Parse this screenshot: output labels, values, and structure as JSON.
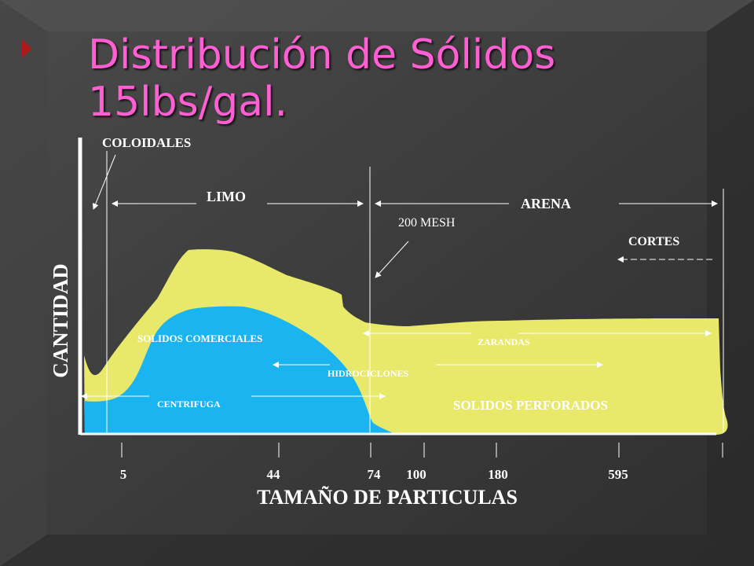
{
  "slide": {
    "title_line1": "Distribución de Sólidos",
    "title_line2": "15lbs/gal.",
    "colors": {
      "background": "#3a3a3a",
      "title": "#ff5fd2",
      "yellow_area": "#e8e86a",
      "blue_area": "#1ab4f0",
      "lines": "#ffffff"
    }
  },
  "diagram": {
    "y_axis_label": "CANTIDAD",
    "x_axis_label": "TAMAÑO DE PARTICULAS",
    "ticks": [
      "5",
      "44",
      "74",
      "100",
      "180",
      "595"
    ],
    "labels": {
      "coloidales": "COLOIDALES",
      "limo": "LIMO",
      "arena": "ARENA",
      "mesh": "200 MESH",
      "cortes": "CORTES",
      "solidos_comerciales": "SOLIDOS COMERCIALES",
      "zarandas": "ZARANDAS",
      "hidrociclones": "HIDROCICLONES",
      "centrifuga": "CENTRIFUGA",
      "solidos_perforados": "SOLIDOS PERFORADOS"
    }
  }
}
